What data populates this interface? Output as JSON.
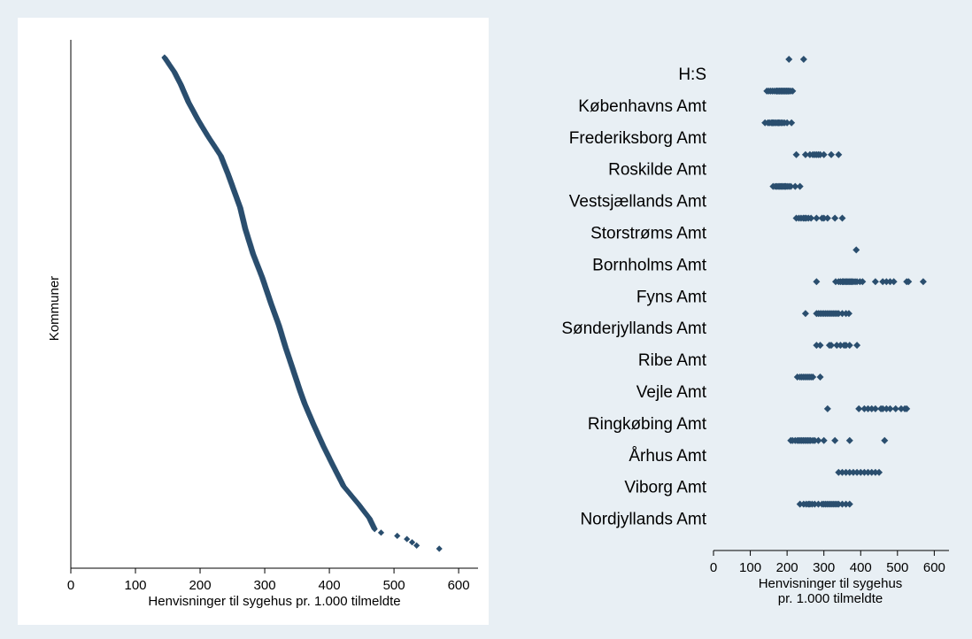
{
  "chart_data": [
    {
      "type": "scatter",
      "title": "",
      "xlabel": "Henvisninger til sygehus pr. 1.000 tilmeldte",
      "ylabel": "Kommuner",
      "xlim": [
        0,
        630
      ],
      "xticks": [
        0,
        100,
        200,
        300,
        400,
        500,
        600
      ],
      "grid": false,
      "legend": "none",
      "color": "#2a4e6e",
      "description_of_y": "communes ranked by referral rate (highest at top)",
      "curve_anchors": [
        [
          145,
          0
        ],
        [
          160,
          8
        ],
        [
          170,
          15
        ],
        [
          182,
          25
        ],
        [
          197,
          35
        ],
        [
          212,
          44
        ],
        [
          232,
          55
        ],
        [
          244,
          66
        ],
        [
          253,
          75
        ],
        [
          262,
          84
        ],
        [
          270,
          96
        ],
        [
          282,
          110
        ],
        [
          296,
          123
        ],
        [
          310,
          138
        ],
        [
          322,
          150
        ],
        [
          332,
          162
        ],
        [
          344,
          175
        ],
        [
          355,
          187
        ],
        [
          362,
          194
        ],
        [
          375,
          205
        ],
        [
          390,
          217
        ],
        [
          405,
          228
        ],
        [
          422,
          240
        ],
        [
          445,
          250
        ],
        [
          462,
          258
        ],
        [
          470,
          264
        ]
      ],
      "outliers": [
        480,
        505,
        520,
        528,
        535,
        570
      ]
    },
    {
      "type": "scatter",
      "title": "",
      "xlabel": "Henvisninger til sygehus\npr. 1.000 tilmeldte",
      "xlabel_lines": [
        "Henvisninger til sygehus",
        "pr. 1.000 tilmeldte"
      ],
      "ylabel": "",
      "xlim": [
        0,
        640
      ],
      "xticks": [
        0,
        100,
        200,
        300,
        400,
        500,
        600
      ],
      "grid": false,
      "legend": "none",
      "color": "#2a4e6e",
      "categories": [
        "H:S",
        "Københavns Amt",
        "Frederiksborg Amt",
        "Roskilde Amt",
        "Vestsjællands Amt",
        "Storstrøms Amt",
        "Bornholms Amt",
        "Fyns Amt",
        "Sønderjyllands Amt",
        "Ribe Amt",
        "Vejle Amt",
        "Ringkøbing Amt",
        "Århus Amt",
        "Viborg Amt",
        "Nordjyllands Amt"
      ],
      "values": [
        [
          205,
          245
        ],
        [
          145,
          150,
          155,
          160,
          165,
          170,
          172,
          175,
          178,
          180,
          183,
          185,
          188,
          190,
          193,
          195,
          198,
          200,
          203,
          206,
          210,
          215
        ],
        [
          140,
          148,
          152,
          157,
          160,
          163,
          166,
          170,
          174,
          177,
          180,
          184,
          188,
          193,
          200,
          212
        ],
        [
          225,
          250,
          262,
          270,
          275,
          280,
          285,
          290,
          300,
          320,
          340
        ],
        [
          162,
          168,
          172,
          176,
          180,
          183,
          186,
          190,
          193,
          196,
          200,
          205,
          210,
          222,
          235
        ],
        [
          225,
          232,
          238,
          244,
          248,
          252,
          258,
          265,
          280,
          295,
          300,
          310,
          330,
          350
        ],
        [
          388
        ],
        [
          280,
          332,
          340,
          345,
          350,
          353,
          356,
          360,
          363,
          366,
          370,
          373,
          376,
          380,
          385,
          390,
          398,
          405,
          440,
          460,
          470,
          480,
          490,
          525,
          530,
          570
        ],
        [
          250,
          280,
          285,
          290,
          295,
          300,
          305,
          310,
          315,
          320,
          325,
          330,
          335,
          340,
          350,
          360,
          368
        ],
        [
          280,
          290,
          315,
          320,
          335,
          345,
          355,
          360,
          370,
          390
        ],
        [
          228,
          235,
          240,
          245,
          250,
          255,
          260,
          265,
          270,
          290
        ],
        [
          310,
          395,
          410,
          420,
          430,
          440,
          455,
          460,
          470,
          480,
          495,
          510,
          520,
          525
        ],
        [
          210,
          215,
          222,
          228,
          232,
          236,
          240,
          244,
          248,
          252,
          256,
          260,
          264,
          270,
          275,
          285,
          300,
          330,
          370,
          465
        ],
        [
          340,
          350,
          360,
          370,
          380,
          390,
          400,
          410,
          420,
          430,
          440,
          450
        ],
        [
          235,
          245,
          252,
          258,
          262,
          268,
          275,
          285,
          295,
          300,
          305,
          310,
          315,
          320,
          325,
          330,
          335,
          340,
          350,
          360,
          370
        ]
      ]
    }
  ]
}
